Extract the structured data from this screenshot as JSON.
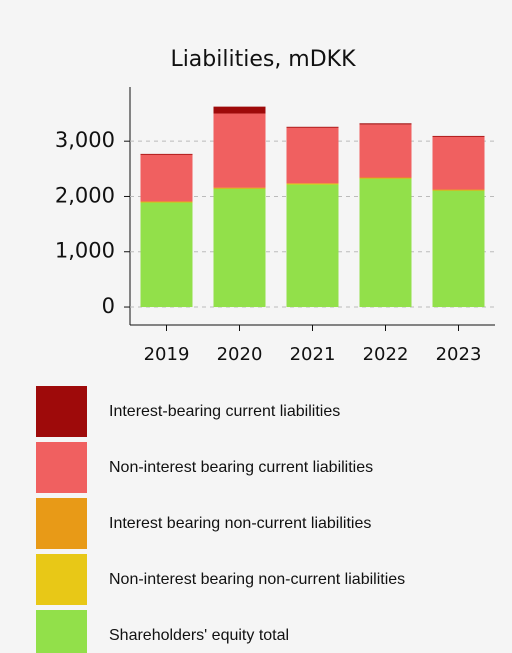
{
  "chart_data": {
    "type": "stacked_bar",
    "title": "Liabilities, mDKK",
    "categories": [
      "2019",
      "2020",
      "2021",
      "2022",
      "2023"
    ],
    "series": [
      {
        "name": "Shareholders' equity total",
        "color": "#92e04a",
        "values": [
          1900,
          2150,
          2225,
          2333,
          2115
        ]
      },
      {
        "name": "Non-interest bearing non-current liabilities",
        "color": "#e8c817",
        "values": [
          5,
          5,
          5,
          5,
          5
        ]
      },
      {
        "name": "Interest bearing non-current liabilities",
        "color": "#e89a17",
        "values": [
          5,
          5,
          10,
          5,
          5
        ]
      },
      {
        "name": "Non-interest bearing current liabilities",
        "color": "#f06060",
        "values": [
          850,
          1340,
          1010,
          960,
          960
        ]
      },
      {
        "name": "Interest-bearing current liabilities",
        "color": "#9e0a0a",
        "values": [
          10,
          125,
          10,
          20,
          10
        ]
      }
    ],
    "ylim": [
      -325,
      3980
    ],
    "yticks": [
      0,
      {
        "value": 1000,
        "label": "1,000"
      },
      {
        "value": 2000,
        "label": "2,000"
      },
      {
        "value": 3000,
        "label": "3,000"
      }
    ],
    "grid": true
  }
}
